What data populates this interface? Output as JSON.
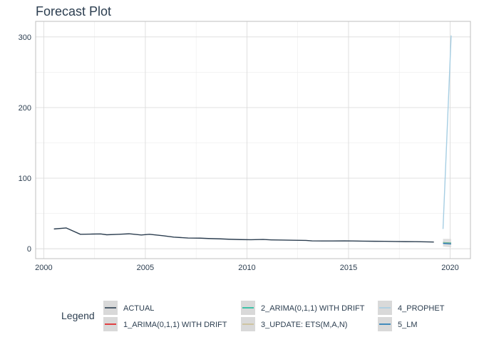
{
  "chart_data": {
    "type": "line",
    "title": "Forecast Plot",
    "xlabel": "",
    "ylabel": "",
    "xlim": [
      1999.6,
      2021.0
    ],
    "ylim": [
      -14,
      322
    ],
    "x_ticks": [
      2000,
      2005,
      2010,
      2015,
      2020
    ],
    "y_ticks": [
      0,
      100,
      200,
      300
    ],
    "grid": true,
    "legend": {
      "title": "Legend",
      "position": "bottom",
      "entries": [
        "ACTUAL",
        "1_ARIMA(0,1,1) WITH DRIFT",
        "2_ARIMA(0,1,1) WITH DRIFT",
        "3_UPDATE: ETS(M,A,N)",
        "4_PROPHET",
        "5_LM"
      ]
    },
    "series": [
      {
        "name": "ACTUAL",
        "color": "#2c3e50",
        "x": [
          2000.5,
          2001.1,
          2001.8,
          2002.4,
          2002.8,
          2003.1,
          2003.7,
          2004.2,
          2004.8,
          2005.2,
          2005.9,
          2006.4,
          2007.1,
          2007.7,
          2008.1,
          2008.7,
          2009.1,
          2009.7,
          2010.2,
          2010.8,
          2011.2,
          2011.8,
          2012.3,
          2012.9,
          2013.2,
          2013.7,
          2014.2,
          2014.8,
          2015.2,
          2015.7,
          2016.3,
          2016.8,
          2017.3,
          2017.8,
          2018.3,
          2018.8,
          2019.2
        ],
        "y": [
          28,
          29.5,
          20.5,
          20.8,
          21,
          19.8,
          20.5,
          21.2,
          19.5,
          20.5,
          18.3,
          16.5,
          15.2,
          15,
          14.5,
          14,
          13.5,
          13,
          12.8,
          13.2,
          12.6,
          12.3,
          12,
          11.8,
          11.2,
          11,
          11,
          11.2,
          11,
          10.8,
          10.6,
          10.5,
          10.3,
          10.1,
          10,
          9.8,
          9.5
        ]
      },
      {
        "name": "1_ARIMA(0,1,1) WITH DRIFT",
        "color": "#e31a1c",
        "x": [
          2019.65,
          2020.05
        ],
        "y": [
          8.6,
          7.9
        ]
      },
      {
        "name": "2_ARIMA(0,1,1) WITH DRIFT",
        "color": "#18bc9c",
        "x": [
          2019.65,
          2020.05
        ],
        "y": [
          8.8,
          8.1
        ]
      },
      {
        "name": "3_UPDATE: ETS(M,A,N)",
        "color": "#ccbe93",
        "x": [
          2019.65,
          2020.05
        ],
        "y": [
          8.3,
          7.6
        ]
      },
      {
        "name": "4_PROPHET",
        "color": "#a6cee3",
        "x": [
          2019.65,
          2020.05
        ],
        "y": [
          28,
          302
        ]
      },
      {
        "name": "5_LM",
        "color": "#1f78b4",
        "x": [
          2019.65,
          2020.05
        ],
        "y": [
          7.6,
          6.9
        ]
      }
    ],
    "confidence_band": {
      "x": [
        2019.65,
        2020.05
      ],
      "lower": [
        3,
        2
      ],
      "upper": [
        14,
        14
      ],
      "color": "#d9d9d9"
    }
  }
}
